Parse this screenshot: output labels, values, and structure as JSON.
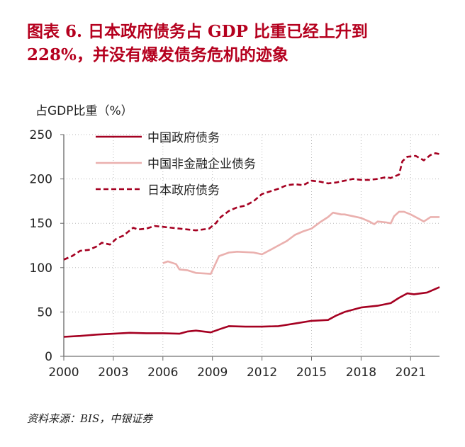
{
  "title_line1": "图表  6. 日本政府债务占 GDP 比重已经上升到",
  "title_line2": "228%，并没有爆发债务危机的迹象",
  "source": "资料来源：BIS，中银证券",
  "chart_data": {
    "type": "line",
    "ylabel": "占GDP比重（%）",
    "xlabel": "",
    "xlim": [
      2000,
      2022.75
    ],
    "ylim": [
      0,
      250
    ],
    "xticks": [
      2000,
      2003,
      2006,
      2009,
      2012,
      2015,
      2018,
      2021
    ],
    "yticks": [
      0,
      50,
      100,
      150,
      200,
      250
    ],
    "grid": true,
    "legend": "top-left",
    "colors": {
      "cn_gov": "#a50021",
      "cn_corp": "#eab0ae",
      "jp_gov": "#a50021",
      "title": "#b5001e"
    },
    "series": [
      {
        "name": "中国政府债务",
        "style": "solid",
        "x": [
          2000,
          2001,
          2002,
          2003,
          2004,
          2005,
          2006,
          2007,
          2007.5,
          2008,
          2008.9,
          2009.5,
          2010,
          2011,
          2012,
          2013,
          2014,
          2015,
          2016,
          2016.5,
          2017,
          2018,
          2019,
          2019.8,
          2020.3,
          2020.8,
          2021.2,
          2022,
          2022.75
        ],
        "y": [
          22,
          23,
          24.5,
          25.5,
          26.5,
          26,
          26,
          25.5,
          28,
          29,
          27,
          31,
          34,
          33.5,
          33.5,
          34,
          37,
          40,
          41,
          46,
          50,
          55,
          57,
          60,
          66,
          71,
          70,
          72,
          78
        ]
      },
      {
        "name": "中国非金融企业债务",
        "style": "solid",
        "x": [
          2006,
          2006.3,
          2006.8,
          2007,
          2007.5,
          2008,
          2008.9,
          2009.2,
          2009.4,
          2010,
          2010.5,
          2011.5,
          2012,
          2012.5,
          2013,
          2013.5,
          2014,
          2014.5,
          2015,
          2015.5,
          2016,
          2016.3,
          2016.8,
          2017,
          2017.5,
          2018,
          2018.5,
          2018.8,
          2019,
          2019.5,
          2019.8,
          2020,
          2020.3,
          2020.6,
          2021,
          2021.5,
          2021.8,
          2022.2,
          2022.75
        ],
        "y": [
          105,
          107,
          104,
          98,
          97,
          94,
          93,
          105,
          113,
          117,
          118,
          117,
          115,
          120,
          125,
          130,
          137,
          141,
          144,
          151,
          157,
          162,
          160,
          160,
          158,
          156,
          152,
          149,
          152,
          151,
          150,
          158,
          163,
          163,
          160,
          155,
          152,
          157,
          157
        ]
      },
      {
        "name": "日本政府债务",
        "style": "dashed",
        "x": [
          2000,
          2000.5,
          2001,
          2001.5,
          2002,
          2002.3,
          2002.8,
          2003.2,
          2003.6,
          2004.2,
          2004.5,
          2005,
          2005.5,
          2006,
          2007,
          2008,
          2008.8,
          2009.2,
          2009.5,
          2010,
          2010.5,
          2011,
          2011.5,
          2012,
          2012.5,
          2013,
          2013.5,
          2014,
          2014.5,
          2015,
          2015.5,
          2016,
          2016.5,
          2017,
          2017.5,
          2018,
          2018.5,
          2019,
          2019.5,
          2019.8,
          2020.3,
          2020.5,
          2020.8,
          2021.3,
          2021.8,
          2022.2,
          2022.5,
          2022.75
        ],
        "y": [
          109,
          113,
          119,
          120,
          124,
          128,
          126,
          133,
          136,
          145,
          143,
          144,
          147,
          146,
          144,
          142,
          144,
          150,
          157,
          164,
          168,
          170,
          175,
          183,
          186,
          189,
          193,
          194,
          193,
          198,
          197,
          195,
          196,
          198,
          200,
          199,
          199,
          200,
          202,
          201,
          205,
          220,
          225,
          226,
          221,
          227,
          229,
          228
        ]
      }
    ]
  }
}
